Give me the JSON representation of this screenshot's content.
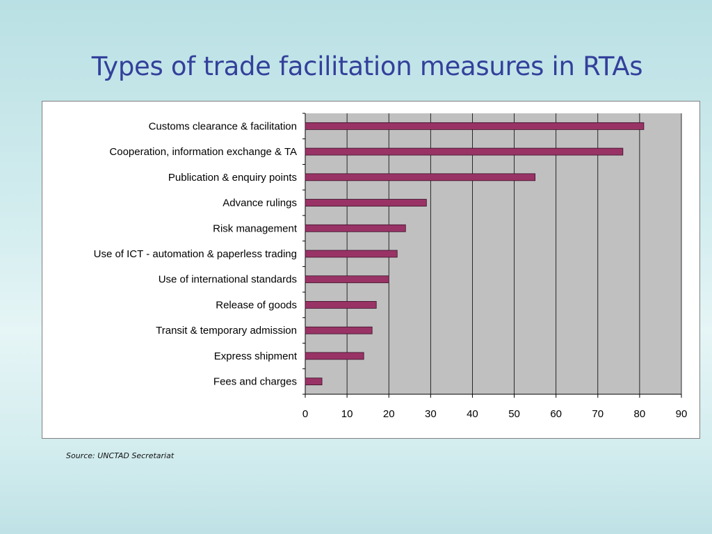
{
  "slide": {
    "title": "Types of trade facilitation measures in RTAs",
    "source": "Source: UNCTAD Secretariat"
  },
  "colors": {
    "title": "#33409b",
    "bar_fill": "#993366",
    "bar_stroke": "#3a0f26",
    "plot_area": "#c0c0c0",
    "gridline": "#000000"
  },
  "chart_data": {
    "type": "bar",
    "orientation": "horizontal",
    "title": "",
    "xlabel": "",
    "ylabel": "",
    "categories": [
      "Customs clearance & facilitation",
      "Cooperation, information exchange & TA",
      "Publication & enquiry points",
      "Advance rulings",
      "Risk management",
      "Use of ICT - automation & paperless trading",
      "Use of international standards",
      "Release of goods",
      "Transit & temporary admission",
      "Express shipment",
      "Fees and charges"
    ],
    "values": [
      81,
      76,
      55,
      29,
      24,
      22,
      20,
      17,
      16,
      14,
      4
    ],
    "xlim": [
      0,
      90
    ],
    "xticks": [
      0,
      10,
      20,
      30,
      40,
      50,
      60,
      70,
      80,
      90
    ],
    "grid": "vertical",
    "legend": "none"
  }
}
